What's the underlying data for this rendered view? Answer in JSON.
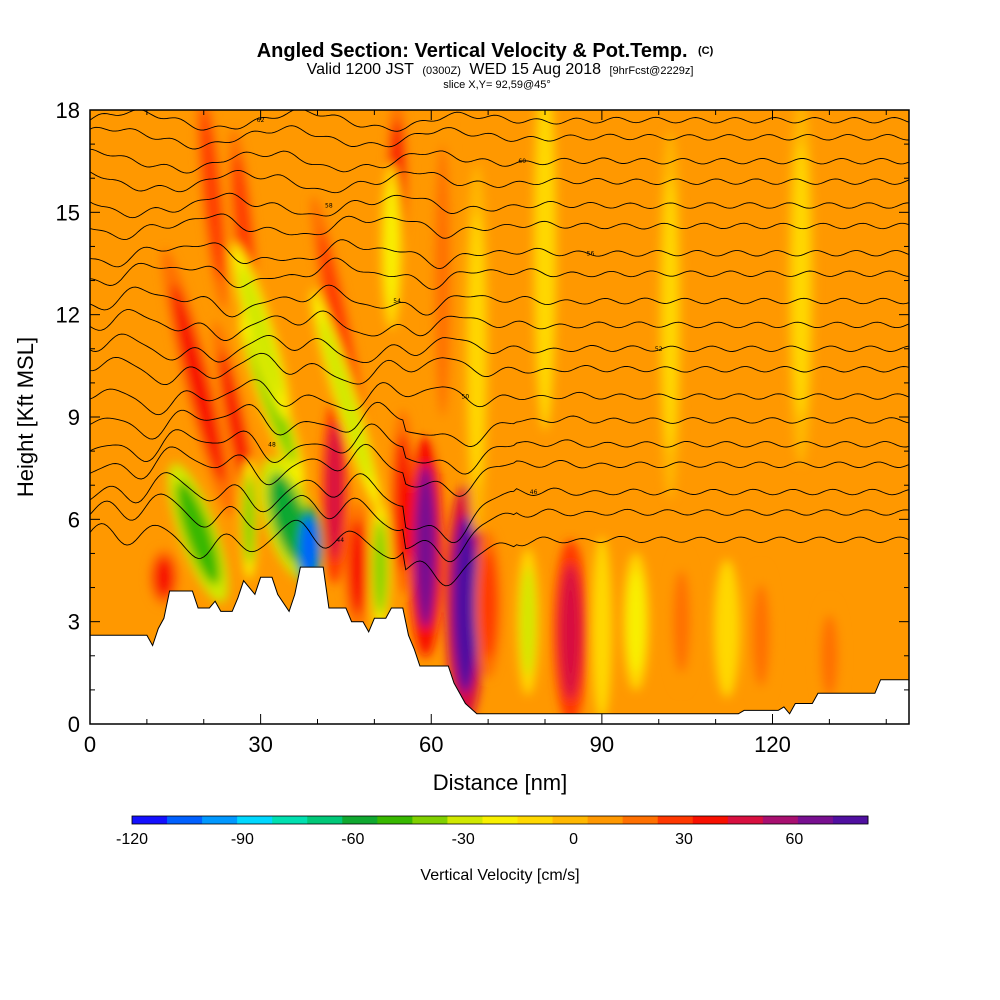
{
  "title": {
    "main": "Angled Section: Vertical Velocity & Pot.Temp.",
    "main_suffix": "(C)",
    "valid_prefix": "Valid 1200 JST",
    "valid_z": "(0300Z)",
    "valid_date": "WED 15 Aug 2018",
    "valid_fcst": "[9hrFcst@2229z]",
    "slice": "slice X,Y= 92,59@45°"
  },
  "chart_data": {
    "type": "heatmap",
    "xlabel": "Distance [nm]",
    "ylabel": "Height [Kft MSL]",
    "xlim": [
      0,
      144
    ],
    "ylim": [
      0,
      18
    ],
    "x_ticks": [
      0,
      30,
      60,
      90,
      120
    ],
    "y_ticks": [
      0,
      3,
      6,
      9,
      12,
      15,
      18
    ],
    "background_value": 5,
    "colorbar": {
      "label": "Vertical Velocity [cm/s]",
      "range": [
        -120,
        80
      ],
      "tick_values": [
        -120,
        -90,
        -60,
        -30,
        0,
        30,
        60
      ],
      "colors": [
        "#1410ff",
        "#0060ff",
        "#0098ff",
        "#00d8ff",
        "#00e0b0",
        "#00c878",
        "#10a830",
        "#38b800",
        "#80d000",
        "#d0e800",
        "#f8f000",
        "#ffd800",
        "#ffb800",
        "#ff9800",
        "#ff7000",
        "#ff3800",
        "#f81000",
        "#d81040",
        "#a81070",
        "#781090",
        "#5010a0"
      ]
    },
    "terrain": [
      [
        0,
        2.6
      ],
      [
        10,
        2.6
      ],
      [
        11,
        2.3
      ],
      [
        12,
        2.8
      ],
      [
        13,
        3.1
      ],
      [
        14,
        3.9
      ],
      [
        18,
        3.9
      ],
      [
        19,
        3.4
      ],
      [
        21,
        3.4
      ],
      [
        22,
        3.6
      ],
      [
        23,
        3.3
      ],
      [
        25,
        3.3
      ],
      [
        26,
        3.7
      ],
      [
        27,
        4.2
      ],
      [
        29,
        3.8
      ],
      [
        30,
        4.3
      ],
      [
        32,
        4.3
      ],
      [
        33,
        3.8
      ],
      [
        35,
        3.3
      ],
      [
        36,
        3.8
      ],
      [
        37,
        4.6
      ],
      [
        41,
        4.6
      ],
      [
        42,
        3.4
      ],
      [
        45,
        3.4
      ],
      [
        46,
        3.0
      ],
      [
        48,
        3.0
      ],
      [
        49,
        2.7
      ],
      [
        50,
        3.1
      ],
      [
        52,
        3.1
      ],
      [
        53,
        3.4
      ],
      [
        55,
        3.4
      ],
      [
        56,
        2.6
      ],
      [
        57,
        2.2
      ],
      [
        58,
        1.7
      ],
      [
        63,
        1.7
      ],
      [
        64,
        1.2
      ],
      [
        65,
        0.9
      ],
      [
        66,
        0.6
      ],
      [
        68,
        0.3
      ],
      [
        87,
        0.3
      ],
      [
        95,
        0.3
      ],
      [
        114,
        0.3
      ],
      [
        115,
        0.4
      ],
      [
        121,
        0.4
      ],
      [
        122,
        0.5
      ],
      [
        123,
        0.3
      ],
      [
        124,
        0.6
      ],
      [
        127,
        0.6
      ],
      [
        128,
        0.9
      ],
      [
        138,
        0.9
      ],
      [
        139,
        1.3
      ],
      [
        144,
        1.3
      ]
    ],
    "cells": [
      {
        "x": 13,
        "y": 4.3,
        "rx": 1.7,
        "ry": 0.6,
        "v": 40
      },
      {
        "x": 19,
        "y": 5.6,
        "rx": 2.2,
        "ry": 1.6,
        "v": -50,
        "tilt": -0.35
      },
      {
        "x": 19,
        "y": 10,
        "rx": 1.6,
        "ry": 3.0,
        "v": 40,
        "tilt": -0.25
      },
      {
        "x": 21.5,
        "y": 15.5,
        "rx": 1.2,
        "ry": 2.5,
        "v": 30,
        "tilt": -0.1
      },
      {
        "x": 26,
        "y": 8.5,
        "rx": 1.2,
        "ry": 2.5,
        "v": 40,
        "tilt": -0.2
      },
      {
        "x": 27,
        "y": 14.5,
        "rx": 1.2,
        "ry": 2.2,
        "v": 25,
        "tilt": -0.1
      },
      {
        "x": 28,
        "y": 6,
        "rx": 1.0,
        "ry": 1.3,
        "v": -40
      },
      {
        "x": 35,
        "y": 6.0,
        "rx": 2.8,
        "ry": 1.4,
        "v": -60,
        "tilt": -0.3
      },
      {
        "x": 38.5,
        "y": 5.2,
        "rx": 1.6,
        "ry": 0.9,
        "v": -110
      },
      {
        "x": 32,
        "y": 9.5,
        "rx": 1.5,
        "ry": 2.0,
        "v": -40,
        "tilt": -0.35
      },
      {
        "x": 30,
        "y": 11.5,
        "rx": 1.5,
        "ry": 2.0,
        "v": -30,
        "tilt": -0.3
      },
      {
        "x": 43,
        "y": 6.8,
        "rx": 1.5,
        "ry": 2.0,
        "v": 45
      },
      {
        "x": 44,
        "y": 11.5,
        "rx": 1.3,
        "ry": 3.0,
        "v": 25,
        "tilt": -0.2
      },
      {
        "x": 45,
        "y": 9.5,
        "rx": 1.3,
        "ry": 2.5,
        "v": -30,
        "tilt": -0.3
      },
      {
        "x": 47,
        "y": 4.6,
        "rx": 1.5,
        "ry": 1.4,
        "v": 40
      },
      {
        "x": 51,
        "y": 4.6,
        "rx": 1.2,
        "ry": 1.4,
        "v": -40
      },
      {
        "x": 55,
        "y": 6.5,
        "rx": 1.4,
        "ry": 2.0,
        "v": 35
      },
      {
        "x": 54,
        "y": 16,
        "rx": 1.2,
        "ry": 1.7,
        "v": 35
      },
      {
        "x": 53,
        "y": 14,
        "rx": 1.2,
        "ry": 1.8,
        "v": -20
      },
      {
        "x": 59,
        "y": 5.2,
        "rx": 2.0,
        "ry": 2.4,
        "v": 70
      },
      {
        "x": 66,
        "y": 3.5,
        "rx": 2.3,
        "ry": 2.6,
        "v": 78
      },
      {
        "x": 70,
        "y": 3.5,
        "rx": 1.5,
        "ry": 1.6,
        "v": 30
      },
      {
        "x": 77,
        "y": 3.0,
        "rx": 1.3,
        "ry": 1.6,
        "v": -25
      },
      {
        "x": 84.5,
        "y": 2.7,
        "rx": 2.0,
        "ry": 2.0,
        "v": 45
      },
      {
        "x": 90,
        "y": 2.8,
        "rx": 1.2,
        "ry": 2.0,
        "v": -15
      },
      {
        "x": 96,
        "y": 3.0,
        "rx": 1.5,
        "ry": 1.5,
        "v": -20
      },
      {
        "x": 104,
        "y": 3.0,
        "rx": 1.5,
        "ry": 1.5,
        "v": 20
      },
      {
        "x": 112,
        "y": 2.8,
        "rx": 1.5,
        "ry": 1.5,
        "v": -15
      },
      {
        "x": 118,
        "y": 2.6,
        "rx": 1.5,
        "ry": 1.5,
        "v": 20
      },
      {
        "x": 130,
        "y": 2.0,
        "rx": 1.5,
        "ry": 1.2,
        "v": 15
      },
      {
        "x": 62,
        "y": 13,
        "rx": 1.4,
        "ry": 4.0,
        "v": 15
      },
      {
        "x": 68,
        "y": 11,
        "rx": 1.4,
        "ry": 4.0,
        "v": -10
      },
      {
        "x": 80,
        "y": 14,
        "rx": 1.3,
        "ry": 4.0,
        "v": -12
      },
      {
        "x": 102,
        "y": 12,
        "rx": 1.3,
        "ry": 4.0,
        "v": -10
      },
      {
        "x": 125,
        "y": 13,
        "rx": 1.5,
        "ry": 4.0,
        "v": -8
      }
    ],
    "isentropes": [
      {
        "y": 17.7,
        "label": "62"
      },
      {
        "y": 17.2,
        "label": ""
      },
      {
        "y": 16.5,
        "label": "60"
      },
      {
        "y": 15.9,
        "label": ""
      },
      {
        "y": 15.2,
        "label": "58"
      },
      {
        "y": 14.6,
        "label": ""
      },
      {
        "y": 13.8,
        "label": "56"
      },
      {
        "y": 13.2,
        "label": ""
      },
      {
        "y": 12.4,
        "label": "54"
      },
      {
        "y": 11.7,
        "label": ""
      },
      {
        "y": 11.0,
        "label": "52"
      },
      {
        "y": 10.4,
        "label": ""
      },
      {
        "y": 9.6,
        "label": "50"
      },
      {
        "y": 8.9,
        "label": ""
      },
      {
        "y": 8.2,
        "label": "48"
      },
      {
        "y": 7.6,
        "label": ""
      },
      {
        "y": 6.8,
        "label": "46"
      },
      {
        "y": 6.2,
        "label": ""
      },
      {
        "y": 5.4,
        "label": "44"
      }
    ]
  }
}
